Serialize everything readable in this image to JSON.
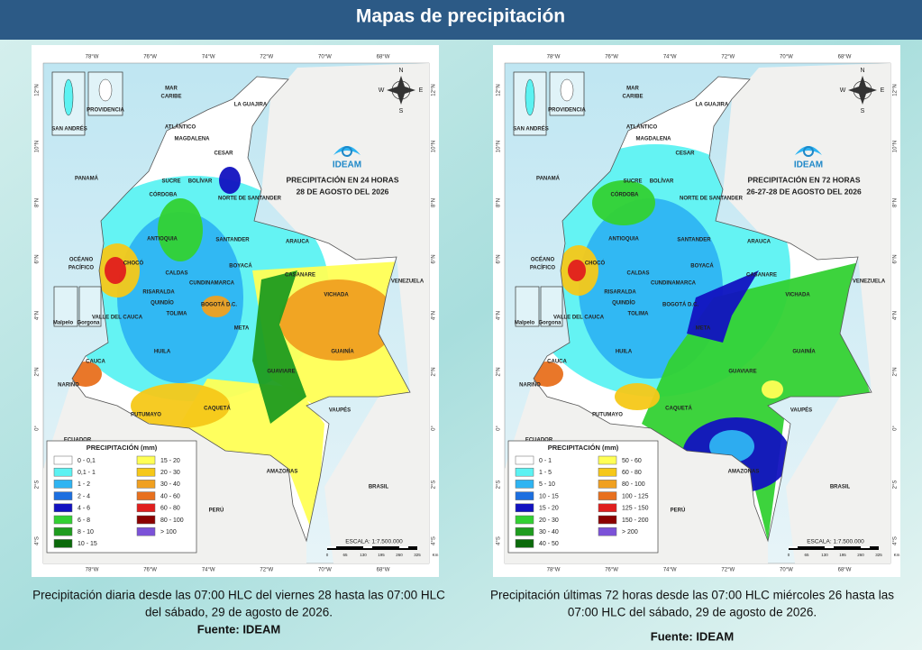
{
  "header": {
    "title": "Mapas de precipitación"
  },
  "longitudes": [
    "78°W",
    "76°W",
    "74°W",
    "72°W",
    "70°W",
    "68°W"
  ],
  "latitudes": [
    "12°N",
    "10°N",
    "8°N",
    "6°N",
    "4°N",
    "2°N",
    "0°",
    "2°S",
    "4°S"
  ],
  "places": [
    "MAR",
    "CARIBE",
    "LA GUAJIRA",
    "ATLÁNTICO",
    "MAGDALENA",
    "CESAR",
    "SUCRE",
    "BOLÍVAR",
    "CÓRDOBA",
    "NORTE DE SANTANDER",
    "ANTIOQUIA",
    "SANTANDER",
    "ARAUCA",
    "CHOCÓ",
    "CALDAS",
    "BOYACÁ",
    "CASANARE",
    "RISARALDA",
    "CUNDINAMARCA",
    "QUINDÍO",
    "BOGOTÁ D.C.",
    "VICHADA",
    "TOLIMA",
    "VALLE DEL CAUCA",
    "META",
    "HUILA",
    "GUAINÍA",
    "CAUCA",
    "GUAVIARE",
    "NARIÑO",
    "PUTUMAYO",
    "CAQUETÁ",
    "VAUPÉS",
    "AMAZONAS",
    "OCÉANO",
    "PACÍFICO",
    "PANAMÁ",
    "VENEZUELA",
    "ECUADOR",
    "BRASIL",
    "PERÚ",
    "SAN ANDRÉS",
    "PROVIDENCIA",
    "Malpelo",
    "Gorgona"
  ],
  "compass": [
    "N",
    "E",
    "S",
    "W"
  ],
  "scale_ticks": [
    "0",
    "65",
    "130",
    "195",
    "260",
    "325",
    "Km"
  ],
  "maps": [
    {
      "title": [
        "PRECIPITACIÓN EN 24 HORAS",
        "28 DE AGOSTO DEL 2026"
      ],
      "agency": "IDEAM",
      "legend_title": "PRECIPITACIÓN (mm)",
      "legend": [
        {
          "label": "0 - 0,1",
          "color": "#ffffff"
        },
        {
          "label": "0,1 - 1",
          "color": "#5cf2f2"
        },
        {
          "label": "1 - 2",
          "color": "#2eb4f2"
        },
        {
          "label": "2 - 4",
          "color": "#1c6fe0"
        },
        {
          "label": "4 - 6",
          "color": "#1212c0"
        },
        {
          "label": "6 - 8",
          "color": "#33d133"
        },
        {
          "label": "8 - 10",
          "color": "#1f9c1f"
        },
        {
          "label": "10 - 15",
          "color": "#0b6a0b"
        },
        {
          "label": "15 - 20",
          "color": "#ffff55"
        },
        {
          "label": "20 - 30",
          "color": "#f6c818"
        },
        {
          "label": "30 - 40",
          "color": "#f0a020"
        },
        {
          "label": "40 - 60",
          "color": "#e8701e"
        },
        {
          "label": "60 - 80",
          "color": "#e01e1e"
        },
        {
          "label": "80 - 100",
          "color": "#8b0000"
        },
        {
          "label": "> 100",
          "color": "#7b52d8"
        }
      ],
      "scale": "ESCALA: 1:7.500.000",
      "caption": [
        "Precipitación diaria desde las 07:00 HLC del viernes 28 hasta las 07:00 HLC",
        "del sábado, 29 de agosto de 2026."
      ],
      "source": "Fuente: IDEAM"
    },
    {
      "title": [
        "PRECIPITACIÓN EN 72 HORAS",
        "26-27-28 DE AGOSTO DEL 2026"
      ],
      "agency": "IDEAM",
      "legend_title": "PRECIPITACIÓN (mm)",
      "legend": [
        {
          "label": "0 - 1",
          "color": "#ffffff"
        },
        {
          "label": "1 - 5",
          "color": "#5cf2f2"
        },
        {
          "label": "5 - 10",
          "color": "#2eb4f2"
        },
        {
          "label": "10 - 15",
          "color": "#1c6fe0"
        },
        {
          "label": "15 - 20",
          "color": "#1212c0"
        },
        {
          "label": "20 - 30",
          "color": "#33d133"
        },
        {
          "label": "30 - 40",
          "color": "#1f9c1f"
        },
        {
          "label": "40 - 50",
          "color": "#0b6a0b"
        },
        {
          "label": "50 - 60",
          "color": "#ffff55"
        },
        {
          "label": "60 - 80",
          "color": "#f6c818"
        },
        {
          "label": "80 - 100",
          "color": "#f0a020"
        },
        {
          "label": "100 - 125",
          "color": "#e8701e"
        },
        {
          "label": "125 - 150",
          "color": "#e01e1e"
        },
        {
          "label": "150 - 200",
          "color": "#8b0000"
        },
        {
          "label": "> 200",
          "color": "#7b52d8"
        }
      ],
      "scale": "ESCALA: 1:7.500.000",
      "caption": [
        "Precipitación últimas 72 horas desde las 07:00 HLC miércoles 26 hasta las",
        "07:00 HLC del sábado, 29 de agosto de 2026."
      ],
      "source": "Fuente:  IDEAM"
    }
  ]
}
